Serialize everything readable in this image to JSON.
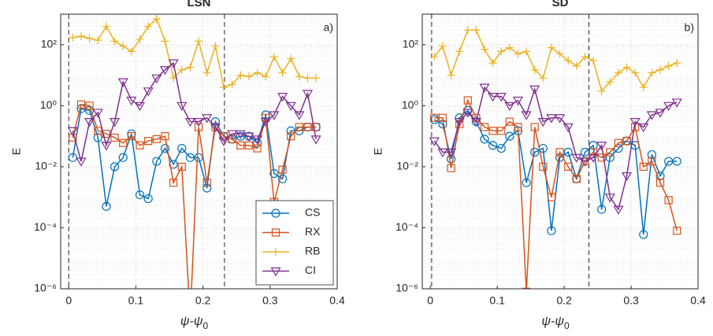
{
  "chart_data": [
    {
      "type": "line",
      "title": "LSN",
      "panel_label": "a)",
      "x_label": "ψ-ψ",
      "x_label_sub": "0",
      "y_label": "E",
      "y_scale": "log",
      "grid": true,
      "minor_grid": true,
      "legend": "lower right",
      "xlim": [
        -0.012,
        0.4
      ],
      "ylim": [
        1e-06,
        1000
      ],
      "xticks": [
        0,
        0.1,
        0.2,
        0.3,
        0.4
      ],
      "yticks": [
        {
          "value": 1e-06,
          "label": "10⁻⁶"
        },
        {
          "value": 0.0001,
          "label": "10⁻⁴"
        },
        {
          "value": 0.01,
          "label": "10⁻²"
        },
        {
          "value": 1,
          "label": "10⁰"
        },
        {
          "value": 100,
          "label": "10²"
        }
      ],
      "vlines": [
        0,
        0.232
      ],
      "x": [
        0.006,
        0.0185,
        0.031,
        0.0435,
        0.056,
        0.0685,
        0.081,
        0.0935,
        0.106,
        0.1185,
        0.131,
        0.1435,
        0.156,
        0.1685,
        0.181,
        0.1935,
        0.206,
        0.2185,
        0.231,
        0.2435,
        0.256,
        0.2685,
        0.281,
        0.2935,
        0.306,
        0.3185,
        0.331,
        0.3435,
        0.356,
        0.3685
      ],
      "series": [
        {
          "name": "CS",
          "color": "#0072bd",
          "marker": "circle",
          "values": [
            0.02,
            0.8,
            0.7,
            0.09,
            0.0005,
            0.01,
            0.02,
            0.12,
            0.0012,
            0.0009,
            0.015,
            0.04,
            0.012,
            0.04,
            0.02,
            0.02,
            0.002,
            0.3,
            0.1,
            0.08,
            0.1,
            0.1,
            0.06,
            0.5,
            0.006,
            0.004,
            0.15,
            0.15,
            0.2,
            0.2
          ]
        },
        {
          "name": "RX",
          "color": "#d95319",
          "marker": "square",
          "values": [
            0.09,
            1.1,
            1.0,
            0.15,
            0.12,
            0.09,
            0.06,
            0.1,
            0.05,
            0.07,
            0.08,
            0.1,
            0.003,
            0.01,
            1e-07,
            0.2,
            0.003,
            0.2,
            0.1,
            0.08,
            0.05,
            0.05,
            0.04,
            0.4,
            0.0007,
            0.008,
            0.1,
            0.2,
            0.2,
            0.2
          ]
        },
        {
          "name": "RB",
          "color": "#edb120",
          "marker": "plus",
          "values": [
            170,
            190,
            160,
            140,
            400,
            130,
            90,
            60,
            150,
            400,
            700,
            130,
            8,
            15,
            18,
            130,
            12,
            90,
            4,
            5,
            10,
            9,
            12,
            9,
            40,
            12,
            35,
            9,
            8,
            8
          ]
        },
        {
          "name": "CI",
          "color": "#7e2f8e",
          "marker": "triangle",
          "values": [
            0.15,
            0.015,
            0.3,
            0.6,
            0.05,
            0.3,
            6,
            1.5,
            1,
            3,
            8,
            15,
            25,
            1,
            0.3,
            0.3,
            0.4,
            0.2,
            0.07,
            0.12,
            0.12,
            0.1,
            0.08,
            0.3,
            0.5,
            2,
            1,
            0.5,
            2.5,
            0.08
          ]
        }
      ]
    },
    {
      "type": "line",
      "title": "SD",
      "panel_label": "b)",
      "x_label": "ψ-ψ",
      "x_label_sub": "0",
      "y_label": "E",
      "y_scale": "log",
      "grid": true,
      "minor_grid": true,
      "xlim": [
        -0.012,
        0.4
      ],
      "ylim": [
        1e-06,
        1000
      ],
      "xticks": [
        0,
        0.1,
        0.2,
        0.3,
        0.4
      ],
      "yticks": [
        {
          "value": 1e-06,
          "label": "10⁻⁶"
        },
        {
          "value": 0.0001,
          "label": "10⁻⁴"
        },
        {
          "value": 0.01,
          "label": "10⁻²"
        },
        {
          "value": 1,
          "label": "10⁰"
        },
        {
          "value": 100,
          "label": "10²"
        }
      ],
      "vlines": [
        0.002,
        0.237
      ],
      "x": [
        0.006,
        0.0185,
        0.031,
        0.0435,
        0.056,
        0.0685,
        0.081,
        0.0935,
        0.106,
        0.1185,
        0.131,
        0.1435,
        0.156,
        0.1685,
        0.181,
        0.1935,
        0.206,
        0.2185,
        0.231,
        0.2435,
        0.256,
        0.2685,
        0.281,
        0.2935,
        0.306,
        0.3185,
        0.331,
        0.3435,
        0.356,
        0.3685
      ],
      "series": [
        {
          "name": "CS",
          "color": "#0072bd",
          "marker": "circle",
          "values": [
            0.35,
            0.25,
            0.018,
            0.4,
            0.7,
            0.3,
            0.08,
            0.05,
            0.04,
            0.1,
            0.15,
            0.003,
            0.03,
            0.04,
            8e-05,
            0.02,
            0.03,
            0.004,
            0.03,
            0.05,
            0.0004,
            0.02,
            0.04,
            0.07,
            0.05,
            6e-05,
            0.025,
            0.005,
            0.015,
            0.015
          ]
        },
        {
          "name": "RX",
          "color": "#d95319",
          "marker": "square",
          "values": [
            0.4,
            0.4,
            0.009,
            0.25,
            1.5,
            0.4,
            0.2,
            0.15,
            0.15,
            0.3,
            0.2,
            8e-07,
            0.2,
            0.01,
            0.001,
            0.03,
            0.01,
            0.004,
            0.015,
            0.03,
            0.02,
            0.03,
            0.06,
            0.07,
            0.2,
            0.01,
            0.015,
            0.003,
            0.0008,
            8e-05
          ]
        },
        {
          "name": "RB",
          "color": "#edb120",
          "marker": "plus",
          "values": [
            40,
            90,
            10,
            60,
            300,
            300,
            70,
            25,
            60,
            80,
            50,
            60,
            15,
            8,
            80,
            50,
            30,
            20,
            40,
            30,
            3,
            6,
            12,
            18,
            12,
            4,
            12,
            15,
            20,
            25
          ]
        },
        {
          "name": "CI",
          "color": "#7e2f8e",
          "marker": "triangle",
          "values": [
            0.07,
            0.03,
            0.03,
            0.3,
            0.6,
            0.3,
            4,
            2,
            2,
            1,
            1.5,
            0.5,
            3.5,
            0.3,
            0.4,
            0.4,
            0.2,
            0.02,
            0.015,
            0.02,
            0.05,
            0.001,
            0.0004,
            0.005,
            0.3,
            0.2,
            0.5,
            0.6,
            1,
            1.3
          ]
        }
      ]
    }
  ]
}
